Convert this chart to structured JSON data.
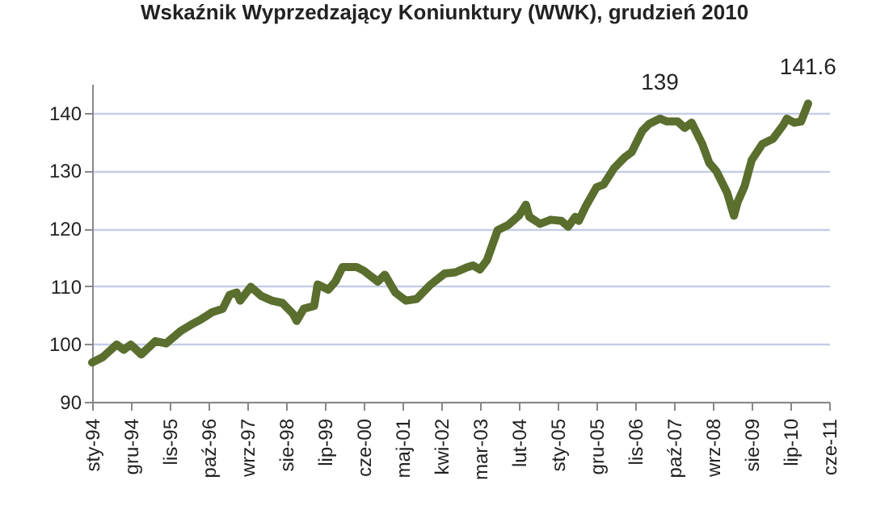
{
  "chart_data": {
    "type": "line",
    "title": "Wskaźnik Wyprzedzający Koniunktury (WWK), grudzień 2010",
    "x": [
      "1994-01",
      "1994-04",
      "1994-08",
      "1994-10",
      "1994-12",
      "1995-03",
      "1995-07",
      "1995-10",
      "1996-02",
      "1996-05",
      "1996-08",
      "1996-11",
      "1997-02",
      "1997-04",
      "1997-06",
      "1997-07",
      "1997-10",
      "1998-01",
      "1998-04",
      "1998-07",
      "1998-10",
      "1998-11",
      "1999-01",
      "1999-04",
      "1999-05",
      "1999-08",
      "1999-10",
      "1999-12",
      "2000-04",
      "2000-06",
      "2000-10",
      "2000-12",
      "2001-03",
      "2001-06",
      "2001-09",
      "2002-01",
      "2002-05",
      "2002-08",
      "2002-11",
      "2003-01",
      "2003-03",
      "2003-05",
      "2003-08",
      "2003-11",
      "2004-02",
      "2004-04",
      "2004-05",
      "2004-08",
      "2004-11",
      "2005-02",
      "2005-04",
      "2005-06",
      "2005-07",
      "2005-09",
      "2005-12",
      "2006-02",
      "2006-05",
      "2006-08",
      "2006-10",
      "2007-01",
      "2007-03",
      "2007-06",
      "2007-08",
      "2007-11",
      "2008-01",
      "2008-03",
      "2008-06",
      "2008-08",
      "2008-10",
      "2009-01",
      "2009-03",
      "2009-04",
      "2009-06",
      "2009-08",
      "2009-11",
      "2010-02",
      "2010-05",
      "2010-06",
      "2010-08",
      "2010-10",
      "2010-12"
    ],
    "series": [
      {
        "color": "#5a6e2e",
        "values": [
          96.8,
          97.7,
          99.9,
          99.0,
          99.9,
          98.2,
          100.5,
          100.1,
          102.2,
          103.3,
          104.3,
          105.5,
          106.1,
          108.5,
          108.9,
          107.5,
          109.9,
          108.3,
          107.5,
          107.1,
          105.2,
          104.0,
          106.1,
          106.6,
          110.3,
          109.4,
          110.8,
          113.3,
          113.3,
          112.7,
          110.8,
          112.0,
          108.9,
          107.5,
          107.8,
          110.3,
          112.2,
          112.4,
          113.2,
          113.6,
          112.9,
          114.5,
          119.7,
          120.6,
          122.2,
          124.1,
          122.0,
          120.8,
          121.5,
          121.3,
          120.3,
          122.0,
          121.3,
          123.9,
          127.1,
          127.6,
          130.4,
          132.3,
          133.2,
          136.9,
          138.1,
          139,
          138.5,
          138.5,
          137.4,
          138.3,
          134.6,
          131.3,
          129.9,
          126.2,
          122.2,
          124.5,
          127.3,
          131.8,
          134.6,
          135.5,
          137.9,
          139.0,
          138.3,
          138.5,
          141.6
        ]
      }
    ],
    "xlim": [
      "1994-01",
      "2011-06"
    ],
    "xticks": [
      {
        "value": "1994-01",
        "label": "sty-94"
      },
      {
        "value": "1994-12",
        "label": "gru-94"
      },
      {
        "value": "1995-11",
        "label": "lis-95"
      },
      {
        "value": "1996-10",
        "label": "paź-96"
      },
      {
        "value": "1997-09",
        "label": "wrz-97"
      },
      {
        "value": "1998-08",
        "label": "sie-98"
      },
      {
        "value": "1999-07",
        "label": "lip-99"
      },
      {
        "value": "2000-06",
        "label": "cze-00"
      },
      {
        "value": "2001-05",
        "label": "maj-01"
      },
      {
        "value": "2002-04",
        "label": "kwi-02"
      },
      {
        "value": "2003-03",
        "label": "mar-03"
      },
      {
        "value": "2004-02",
        "label": "lut-04"
      },
      {
        "value": "2005-01",
        "label": "sty-05"
      },
      {
        "value": "2005-12",
        "label": "gru-05"
      },
      {
        "value": "2006-11",
        "label": "lis-06"
      },
      {
        "value": "2007-10",
        "label": "paź-07"
      },
      {
        "value": "2008-09",
        "label": "wrz-08"
      },
      {
        "value": "2009-08",
        "label": "sie-09"
      },
      {
        "value": "2010-07",
        "label": "lip-10"
      },
      {
        "value": "2011-06",
        "label": "cze-11"
      }
    ],
    "ylim": [
      90,
      145
    ],
    "yticks": [
      90,
      100,
      110,
      120,
      130,
      140
    ],
    "grid": "y",
    "marker": "none",
    "line_style": "solid",
    "annotations": [
      {
        "text": "139",
        "x": "2007-06",
        "y": 139
      },
      {
        "text": "141.6",
        "x": "2010-12",
        "y": 141.6
      }
    ]
  }
}
